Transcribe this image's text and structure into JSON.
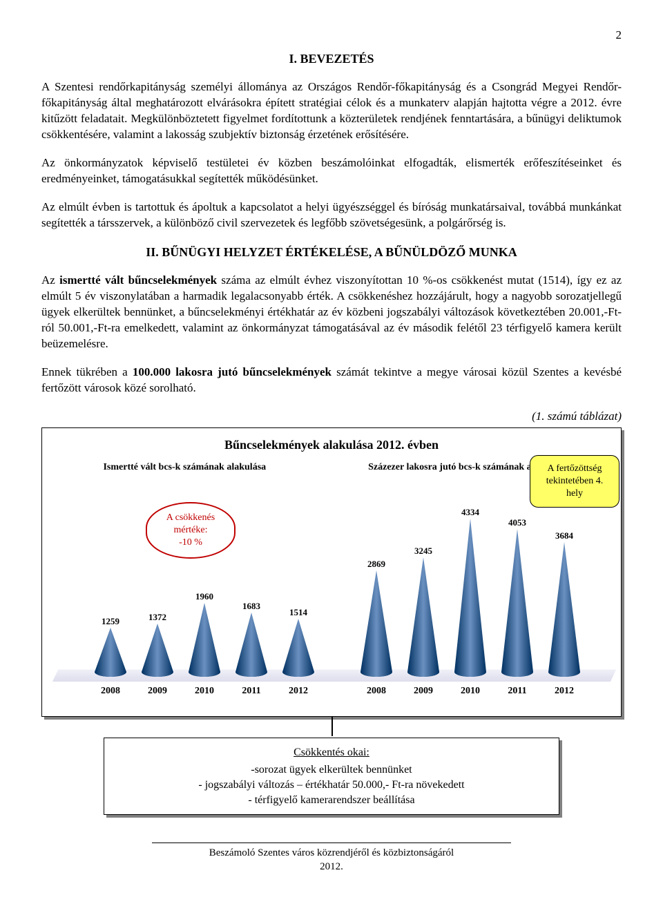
{
  "page_number": "2",
  "section1_title": "I. BEVEZETÉS",
  "para1": "A Szentesi rendőrkapitányság személyi állománya az Országos Rendőr-főkapitányság és a Csongrád Megyei Rendőr-főkapitányság által meghatározott elvárásokra épített stratégiai célok és a munkaterv alapján hajtotta végre a 2012. évre kitűzött feladatait. Megkülönböztetett figyelmet fordítottunk a közterületek rendjének fenntartására, a bűnügyi deliktumok csökkentésére, valamint a lakosság szubjektív biztonság érzetének erősítésére.",
  "para2": "Az önkormányzatok képviselő testületei év közben beszámolóinkat elfogadták, elismerték erőfeszítéseinket és eredményeinket, támogatásukkal segítették működésünket.",
  "para3": "Az elmúlt évben is tartottuk és ápoltuk a kapcsolatot a helyi ügyészséggel és bíróság munkatársaival, továbbá munkánkat segítették a társszervek, a különböző civil szervezetek és legfőbb szövetségesünk, a polgárőrség is.",
  "section2_title": "II. BŰNÜGYI HELYZET ÉRTÉKELÉSE, A BŰNÜLDÖZŐ MUNKA",
  "para4_a": "Az ",
  "para4_bold": "ismertté vált bűncselekmények",
  "para4_b": " száma az elmúlt évhez viszonyítottan 10 %-os csökkenést mutat (1514), így ez az elmúlt 5 év viszonylatában a harmadik legalacsonyabb érték. A csökkenéshez hozzájárult, hogy a nagyobb sorozatjellegű ügyek elkerültek bennünket, a bűncselekményi értékhatár az év közbeni jogszabályi változások következtében 20.001,-Ft-ról 50.001,-Ft-ra emelkedett, valamint az önkormányzat támogatásával az év második felétől 23 térfigyelő kamera került beüzemelésre.",
  "para5_a": "Ennek tükrében a ",
  "para5_bold": "100.000 lakosra jutó bűncselekmények",
  "para5_b": " számát tekintve a megye városai közül Szentes a kevésbé fertőzött városok közé sorolható.",
  "table_ref": "(1. számú táblázat)",
  "chart": {
    "title": "Bűncselekmények alakulása 2012. évben",
    "subtitle_left": "Ismertté vált bcs-k számának alakulása",
    "subtitle_right": "Százezer lakosra jutó bcs-k számának alakulása",
    "years": [
      "2008",
      "2009",
      "2010",
      "2011",
      "2012"
    ],
    "left_values": [
      1259,
      1372,
      1960,
      1683,
      1514
    ],
    "right_values": [
      2869,
      3245,
      4334,
      4053,
      3684
    ],
    "max_value": 4500,
    "cone_fill_dark": "#003060",
    "cone_fill_light": "#6a90c0",
    "floor_color": "#dcdcec",
    "callout_red_text1": "A csökkenés",
    "callout_red_text2": "mértéke:",
    "callout_red_text3": "-10 %",
    "callout_yellow_text1": "A fertőzöttség",
    "callout_yellow_text2": "tekintetében 4.",
    "callout_yellow_text3": "hely"
  },
  "reasons": {
    "heading": "Csökkentés okai:",
    "line1": "-sorozat ügyek elkerültek bennünket",
    "line2": "- jogszabályi változás – értékhatár 50.000,- Ft-ra növekedett",
    "line3": "- térfigyelő kamerarendszer beállítása"
  },
  "footer": {
    "line1": "Beszámoló Szentes város közrendjéről és közbiztonságáról",
    "line2": "2012."
  }
}
